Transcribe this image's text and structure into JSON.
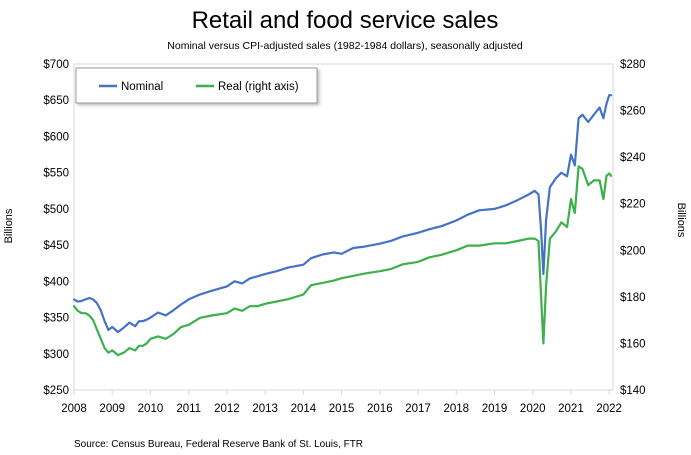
{
  "chart_data": {
    "type": "line",
    "title": "Retail and food service sales",
    "subtitle": "Nominal versus CPI-adjusted sales (1982-1984 dollars), seasonally adjusted",
    "source": "Source: Census Bureau, Federal Reserve Bank of St. Louis, FTR",
    "ylabel_left": "Billions",
    "ylabel_right": "Billions",
    "xlim": [
      2008,
      2022.1
    ],
    "ylim_left": [
      250,
      700
    ],
    "ylim_right": [
      140,
      280
    ],
    "x_ticks": [
      2008,
      2009,
      2010,
      2011,
      2012,
      2013,
      2014,
      2015,
      2016,
      2017,
      2018,
      2019,
      2020,
      2021,
      2022
    ],
    "x_tick_labels": [
      "2008",
      "2009",
      "2010",
      "2011",
      "2012",
      "2013",
      "2014",
      "2015",
      "2016",
      "2017",
      "2018",
      "2019",
      "2020",
      "2021",
      "2022"
    ],
    "y_left_ticks": [
      250,
      300,
      350,
      400,
      450,
      500,
      550,
      600,
      650,
      700
    ],
    "y_left_tick_labels": [
      "$250",
      "$300",
      "$350",
      "$400",
      "$450",
      "$500",
      "$550",
      "$600",
      "$650",
      "$700"
    ],
    "y_right_ticks": [
      140,
      160,
      180,
      200,
      220,
      240,
      260,
      280
    ],
    "y_right_tick_labels": [
      "$140",
      "$160",
      "$180",
      "$200",
      "$220",
      "$240",
      "$260",
      "$280"
    ],
    "legend": {
      "placement": "top-left",
      "entries": [
        "Nominal",
        "Real (right axis)"
      ]
    },
    "series": [
      {
        "name": "Nominal",
        "axis": "left",
        "color": "#4472C4",
        "x": [
          2008.0,
          2008.1,
          2008.2,
          2008.3,
          2008.4,
          2008.5,
          2008.6,
          2008.7,
          2008.8,
          2008.9,
          2009.0,
          2009.15,
          2009.3,
          2009.45,
          2009.6,
          2009.7,
          2009.8,
          2009.9,
          2010.0,
          2010.2,
          2010.4,
          2010.6,
          2010.8,
          2011.0,
          2011.3,
          2011.6,
          2012.0,
          2012.2,
          2012.4,
          2012.6,
          2012.8,
          2013.0,
          2013.3,
          2013.6,
          2014.0,
          2014.2,
          2014.5,
          2014.8,
          2015.0,
          2015.3,
          2015.6,
          2016.0,
          2016.3,
          2016.6,
          2017.0,
          2017.3,
          2017.6,
          2018.0,
          2018.3,
          2018.6,
          2019.0,
          2019.3,
          2019.6,
          2019.9,
          2020.05,
          2020.15,
          2020.22,
          2020.28,
          2020.35,
          2020.45,
          2020.6,
          2020.75,
          2020.9,
          2021.0,
          2021.1,
          2021.2,
          2021.3,
          2021.45,
          2021.6,
          2021.75,
          2021.85,
          2021.93,
          2022.0,
          2022.05
        ],
        "values": [
          375,
          372,
          373,
          375,
          377,
          375,
          370,
          360,
          345,
          333,
          337,
          330,
          336,
          343,
          338,
          345,
          345,
          347,
          350,
          357,
          353,
          360,
          368,
          375,
          382,
          387,
          393,
          400,
          397,
          404,
          407,
          410,
          414,
          419,
          423,
          432,
          437,
          440,
          438,
          446,
          448,
          452,
          456,
          462,
          467,
          472,
          476,
          484,
          492,
          498,
          500,
          505,
          512,
          520,
          525,
          520,
          470,
          410,
          485,
          530,
          542,
          550,
          545,
          575,
          560,
          625,
          630,
          620,
          630,
          640,
          625,
          645,
          657,
          657
        ]
      },
      {
        "name": "Real (right axis)",
        "axis": "right",
        "color": "#3CB04B",
        "x": [
          2008.0,
          2008.1,
          2008.2,
          2008.3,
          2008.4,
          2008.5,
          2008.6,
          2008.7,
          2008.8,
          2008.9,
          2009.0,
          2009.15,
          2009.3,
          2009.45,
          2009.6,
          2009.7,
          2009.8,
          2009.9,
          2010.0,
          2010.2,
          2010.4,
          2010.6,
          2010.8,
          2011.0,
          2011.3,
          2011.6,
          2012.0,
          2012.2,
          2012.4,
          2012.6,
          2012.8,
          2013.0,
          2013.3,
          2013.6,
          2014.0,
          2014.2,
          2014.5,
          2014.8,
          2015.0,
          2015.3,
          2015.6,
          2016.0,
          2016.3,
          2016.6,
          2017.0,
          2017.3,
          2017.6,
          2018.0,
          2018.3,
          2018.6,
          2019.0,
          2019.3,
          2019.6,
          2019.9,
          2020.05,
          2020.15,
          2020.22,
          2020.28,
          2020.35,
          2020.45,
          2020.6,
          2020.75,
          2020.9,
          2021.0,
          2021.1,
          2021.2,
          2021.3,
          2021.45,
          2021.6,
          2021.75,
          2021.85,
          2021.93,
          2022.0,
          2022.05
        ],
        "values": [
          176,
          174,
          173,
          173,
          172,
          170,
          166,
          162,
          158,
          156,
          157,
          155,
          156,
          158,
          157,
          159,
          159,
          160,
          162,
          163,
          162,
          164,
          167,
          168,
          171,
          172,
          173,
          175,
          174,
          176,
          176,
          177,
          178,
          179,
          181,
          185,
          186,
          187,
          188,
          189,
          190,
          191,
          192,
          194,
          195,
          197,
          198,
          200,
          202,
          202,
          203,
          203,
          204,
          205,
          205,
          204,
          180,
          160,
          185,
          205,
          208,
          212,
          210,
          222,
          216,
          236,
          235,
          228,
          230,
          230,
          222,
          232,
          233,
          232
        ]
      }
    ]
  }
}
